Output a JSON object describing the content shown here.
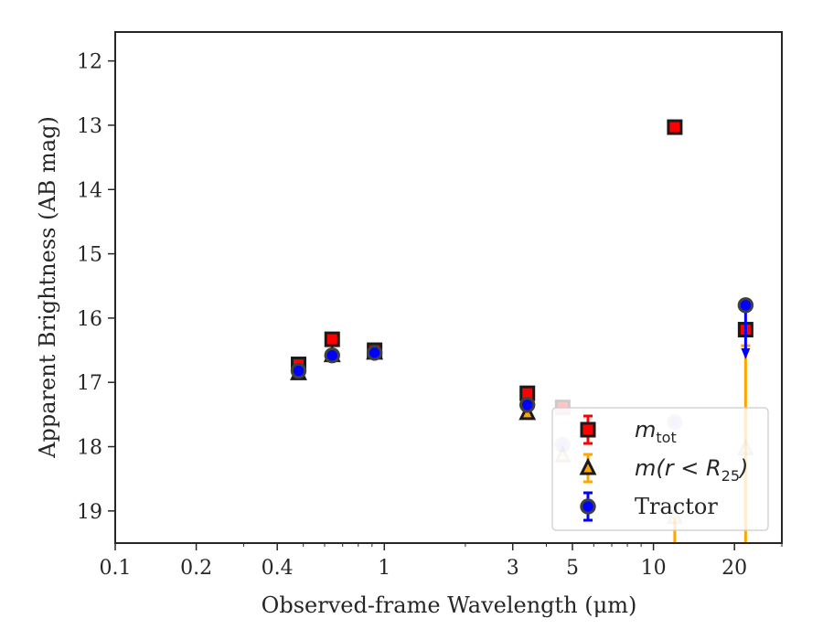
{
  "chart_data": {
    "type": "scatter",
    "title": "",
    "xlabel": "Observed-frame Wavelength (μm)",
    "ylabel": "Apparent Brightness (AB mag)",
    "xscale": "log",
    "xlim": [
      0.1,
      30
    ],
    "ylim": [
      19.5,
      11.55
    ],
    "y_inverted": true,
    "grid": false,
    "legend_position": "lower-right",
    "x_ticks": [
      0.1,
      0.2,
      0.4,
      1,
      3,
      5,
      10,
      20
    ],
    "x_tick_labels": [
      "0.1",
      "0.2",
      "0.4",
      "1",
      "3",
      "5",
      "10",
      "20"
    ],
    "y_ticks": [
      12,
      13,
      14,
      15,
      16,
      17,
      18,
      19
    ],
    "y_tick_labels": [
      "12",
      "13",
      "14",
      "15",
      "16",
      "17",
      "18",
      "19"
    ],
    "series": [
      {
        "name": "m_tot",
        "legend_main": "m",
        "legend_sub": "tot",
        "marker": "square",
        "color": "#ff0000",
        "edge": "#1a1a1a",
        "points": [
          {
            "x": 0.48,
            "y": 16.72
          },
          {
            "x": 0.64,
            "y": 16.33
          },
          {
            "x": 0.92,
            "y": 16.5
          },
          {
            "x": 3.4,
            "y": 17.17
          },
          {
            "x": 4.6,
            "y": 17.39,
            "faded": true
          },
          {
            "x": 12.0,
            "y": 13.03
          },
          {
            "x": 22.0,
            "y": 16.18
          }
        ]
      },
      {
        "name": "m(r < R25)",
        "legend_main": "m(r < R",
        "legend_sub": "25",
        "legend_close": ")",
        "marker": "triangle",
        "color": "#ffa500",
        "edge": "#1a1a1a",
        "points": [
          {
            "x": 0.48,
            "y": 16.86
          },
          {
            "x": 0.64,
            "y": 16.58
          },
          {
            "x": 0.92,
            "y": 16.54
          },
          {
            "x": 3.4,
            "y": 17.48
          },
          {
            "x": 4.6,
            "y": 18.14,
            "faded": true
          },
          {
            "x": 12.0,
            "y": 19.1,
            "faded": true,
            "err_up": 1.0
          },
          {
            "x": 22.0,
            "y": 18.03,
            "faded": true,
            "err_up": 2.3,
            "err_down": 1.6
          }
        ]
      },
      {
        "name": "Tractor",
        "legend_main": "Tractor",
        "marker": "circle",
        "color": "#0000ff",
        "edge": "#404040",
        "points": [
          {
            "x": 0.48,
            "y": 16.82
          },
          {
            "x": 0.64,
            "y": 16.58
          },
          {
            "x": 0.92,
            "y": 16.54
          },
          {
            "x": 3.4,
            "y": 17.35
          },
          {
            "x": 4.6,
            "y": 17.97,
            "faded": true
          },
          {
            "x": 12.0,
            "y": 17.62,
            "faded": true
          },
          {
            "x": 22.0,
            "y": 15.8,
            "upper_limit": true
          }
        ]
      }
    ]
  }
}
